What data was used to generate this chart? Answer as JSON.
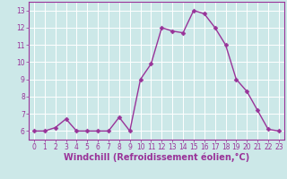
{
  "x": [
    0,
    1,
    2,
    3,
    4,
    5,
    6,
    7,
    8,
    9,
    10,
    11,
    12,
    13,
    14,
    15,
    16,
    17,
    18,
    19,
    20,
    21,
    22,
    23
  ],
  "y": [
    6,
    6,
    6.2,
    6.7,
    6,
    6,
    6,
    6,
    6.8,
    6,
    9,
    9.9,
    12,
    11.8,
    11.7,
    13,
    12.8,
    12,
    11,
    9,
    8.3,
    7.2,
    6.1,
    6
  ],
  "line_color": "#993399",
  "marker_color": "#993399",
  "bg_color": "#cce8e8",
  "grid_color": "#ffffff",
  "xlabel": "Windchill (Refroidissement éolien,°C)",
  "xlabel_color": "#993399",
  "ylim": [
    5.5,
    13.5
  ],
  "xlim": [
    -0.5,
    23.5
  ],
  "yticks": [
    6,
    7,
    8,
    9,
    10,
    11,
    12,
    13
  ],
  "xticks": [
    0,
    1,
    2,
    3,
    4,
    5,
    6,
    7,
    8,
    9,
    10,
    11,
    12,
    13,
    14,
    15,
    16,
    17,
    18,
    19,
    20,
    21,
    22,
    23
  ],
  "tick_label_color": "#993399",
  "tick_label_fontsize": 5.5,
  "xlabel_fontsize": 7.0,
  "line_width": 1.0,
  "marker_size": 2.5
}
